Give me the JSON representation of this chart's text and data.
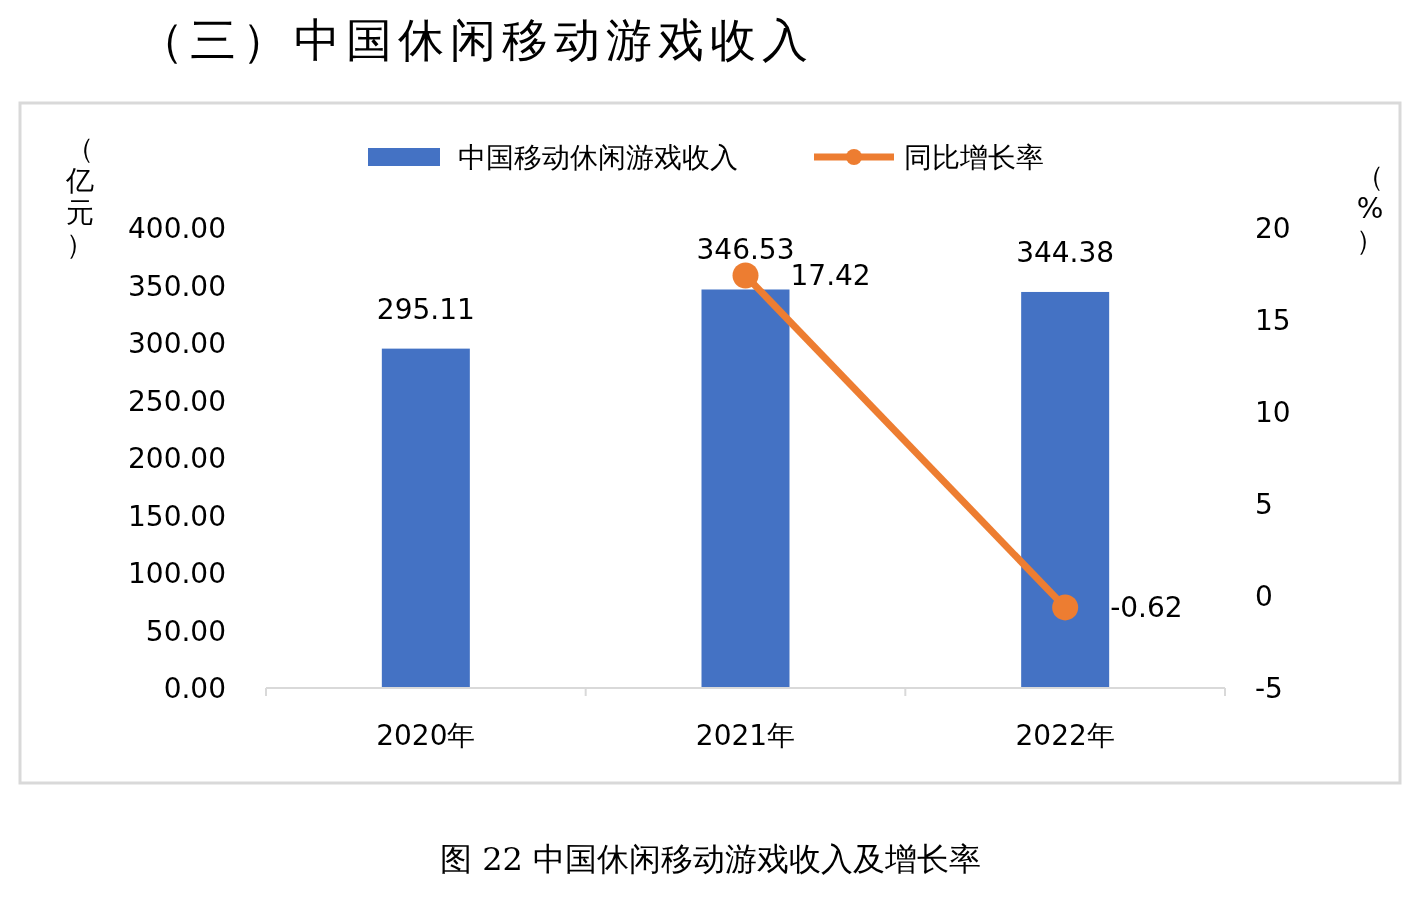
{
  "chart_data": {
    "type": "bar",
    "title": "（三）中国休闲移动游戏收入",
    "annotations": [
      "图 22 中国休闲移动游戏收入及增长率"
    ],
    "ylabel": "（亿元）",
    "y2label": "（%）",
    "categories": [
      "2020年",
      "2021年",
      "2022年"
    ],
    "series": [
      {
        "name": "中国移动休闲游戏收入",
        "color": "#4472c4",
        "values": [
          295.11,
          346.53,
          344.38
        ]
      },
      {
        "name": "同比增长率",
        "type": "line",
        "axis": "y2",
        "color": "#ed7d31",
        "values": [
          null,
          17.42,
          -0.62
        ]
      }
    ],
    "ylim": [
      0,
      400
    ],
    "yticks": [
      {
        "value": 0,
        "label": "0.00"
      },
      {
        "value": 50,
        "label": "50.00"
      },
      {
        "value": 100,
        "label": "100.00"
      },
      {
        "value": 150,
        "label": "150.00"
      },
      {
        "value": 200,
        "label": "200.00"
      },
      {
        "value": 250,
        "label": "250.00"
      },
      {
        "value": 300,
        "label": "300.00"
      },
      {
        "value": 350,
        "label": "350.00"
      },
      {
        "value": 400,
        "label": "400.00"
      }
    ],
    "y2lim": [
      -5,
      20
    ],
    "y2ticks": [
      -5,
      0,
      5,
      10,
      15,
      20
    ],
    "data_labels": true,
    "legend": "top",
    "marker": "circle",
    "grid": false
  }
}
